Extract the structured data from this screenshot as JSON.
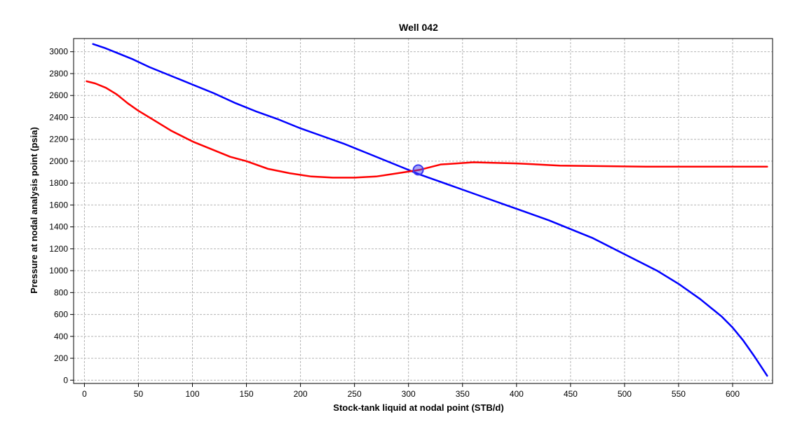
{
  "chart_data": {
    "type": "line",
    "title": "Well 042",
    "xlabel": "Stock-tank liquid at nodal point (STB/d)",
    "ylabel": "Pressure at nodal analysis point (psia)",
    "xlim": [
      -10,
      637
    ],
    "ylim": [
      -30,
      3120
    ],
    "xticks": [
      0,
      50,
      100,
      150,
      200,
      250,
      300,
      350,
      400,
      450,
      500,
      550,
      600
    ],
    "yticks": [
      0,
      200,
      400,
      600,
      800,
      1000,
      1200,
      1400,
      1600,
      1800,
      2000,
      2200,
      2400,
      2600,
      2800,
      3000
    ],
    "grid": true,
    "series": [
      {
        "color": "#0000ff",
        "x": [
          8,
          20,
          30,
          45,
          60,
          80,
          100,
          120,
          140,
          160,
          180,
          200,
          220,
          240,
          260,
          280,
          300,
          310,
          330,
          350,
          370,
          390,
          410,
          430,
          450,
          470,
          490,
          510,
          530,
          550,
          570,
          590,
          600,
          610,
          620,
          632
        ],
        "y": [
          3070,
          3030,
          2990,
          2930,
          2860,
          2780,
          2700,
          2620,
          2530,
          2450,
          2380,
          2300,
          2230,
          2160,
          2080,
          2000,
          1920,
          1880,
          1810,
          1740,
          1670,
          1600,
          1530,
          1460,
          1380,
          1300,
          1200,
          1100,
          1000,
          880,
          740,
          580,
          480,
          360,
          220,
          40
        ]
      },
      {
        "color": "#ff0000",
        "x": [
          2,
          10,
          20,
          30,
          40,
          50,
          65,
          80,
          100,
          120,
          135,
          150,
          170,
          190,
          210,
          230,
          250,
          270,
          290,
          310,
          330,
          360,
          400,
          440,
          480,
          520,
          560,
          600,
          632
        ],
        "y": [
          2730,
          2710,
          2670,
          2610,
          2530,
          2460,
          2370,
          2280,
          2180,
          2100,
          2040,
          2000,
          1930,
          1890,
          1860,
          1850,
          1850,
          1860,
          1890,
          1920,
          1970,
          1990,
          1980,
          1960,
          1955,
          1950,
          1950,
          1950,
          1950
        ]
      }
    ],
    "operating_point": {
      "x": 309,
      "y": 1920,
      "color": "#3a3af2"
    }
  }
}
